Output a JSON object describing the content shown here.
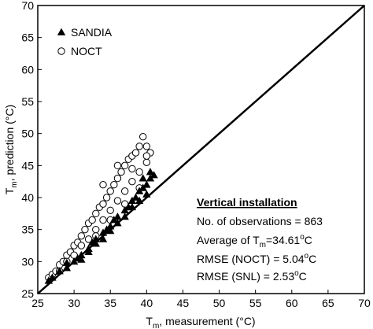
{
  "chart_data": {
    "type": "scatter",
    "x_label": [
      "T",
      "m",
      ", measurement (°C)"
    ],
    "y_label": [
      "T",
      "m",
      ", prediction (°C)"
    ],
    "xlim": [
      25,
      70
    ],
    "ylim": [
      25,
      70
    ],
    "xticks": [
      25,
      30,
      35,
      40,
      45,
      50,
      55,
      60,
      65,
      70
    ],
    "yticks": [
      25,
      30,
      35,
      40,
      45,
      50,
      55,
      60,
      65,
      70
    ],
    "legend": "upper left",
    "series": [
      {
        "name": "SANDIA",
        "marker": "triangle",
        "color": "#000000",
        "fill": "#000000",
        "x": [
          26.5,
          27,
          28,
          29,
          30,
          30.5,
          31,
          32,
          32.5,
          33,
          34,
          34.5,
          35,
          35.5,
          36,
          37,
          37.5,
          38,
          38.5,
          39,
          39.5,
          40,
          40.5,
          41,
          29,
          31,
          33,
          35,
          37,
          39,
          40,
          36,
          38,
          34,
          32,
          40.5,
          39.5
        ],
        "values": [
          27,
          27.5,
          28.5,
          29,
          30,
          30.5,
          31,
          32,
          33,
          33.5,
          34.5,
          35,
          35.5,
          36.5,
          37,
          38,
          38.5,
          39.5,
          40,
          41,
          41.5,
          42,
          43,
          43.5,
          29.8,
          30.3,
          32.8,
          34.8,
          37,
          39.5,
          40.5,
          36,
          38.5,
          33.5,
          31.5,
          44,
          43
        ]
      },
      {
        "name": "NOCT",
        "marker": "circle",
        "color": "#000000",
        "fill": "#ffffff",
        "x": [
          26.5,
          27,
          27.5,
          28,
          28.5,
          29,
          29.5,
          30,
          30.5,
          31,
          31.5,
          32,
          32.5,
          33,
          33.5,
          34,
          34.5,
          35,
          35.5,
          36,
          36.5,
          37,
          37.5,
          38,
          38.5,
          39,
          39.5,
          40,
          40.5,
          30,
          31,
          32,
          33,
          34,
          35,
          36,
          37,
          38,
          39,
          40,
          28,
          29,
          33,
          35,
          37,
          39,
          36,
          38,
          34,
          40
        ],
        "values": [
          27.5,
          28,
          28.5,
          29.5,
          30,
          31,
          31.5,
          32.5,
          33,
          34,
          35,
          36,
          36.5,
          37.5,
          38.5,
          39,
          40,
          41,
          42,
          43,
          44,
          45,
          46,
          46.5,
          47,
          48,
          49.5,
          48,
          47,
          31,
          32.5,
          33.5,
          35,
          36.5,
          38,
          39.5,
          41,
          42.5,
          44,
          45.5,
          28.5,
          30,
          34,
          36.5,
          39,
          41.5,
          45,
          44.5,
          42,
          46.5
        ]
      }
    ],
    "annotations": [
      [
        "Vertical installation"
      ],
      [
        "No. of observations = 863"
      ],
      [
        "Average of T",
        "m",
        "=34.61",
        "o",
        "C"
      ],
      [
        "RMSE (NOCT) = 5.04",
        "o",
        "C"
      ],
      [
        "RMSE (SNL) = 2.53",
        "o",
        "C"
      ]
    ]
  }
}
